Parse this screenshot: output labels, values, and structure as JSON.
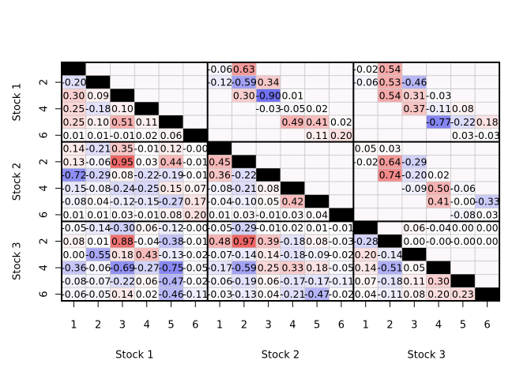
{
  "chart_data": {
    "type": "matrix",
    "row_groups": [
      "Stock 1",
      "Stock 2",
      "Stock 3"
    ],
    "col_groups": [
      "Stock 1",
      "Stock 2",
      "Stock 3"
    ],
    "xticks": [
      1,
      2,
      3,
      4,
      5,
      6
    ],
    "yticks": [
      2,
      4,
      6
    ],
    "clim": [
      -1,
      1
    ],
    "positive_color": "#ee6060",
    "negative_color": "#6060ee",
    "diagonal_color": "#000000",
    "values": [
      [
        null,
        null,
        null,
        null,
        null,
        null,
        -0.06,
        0.63,
        null,
        null,
        null,
        null,
        -0.02,
        0.54,
        null,
        null,
        null,
        null
      ],
      [
        -0.2,
        null,
        null,
        null,
        null,
        null,
        -0.12,
        -0.59,
        0.34,
        null,
        null,
        null,
        -0.06,
        0.53,
        -0.46,
        null,
        null,
        null
      ],
      [
        0.3,
        0.09,
        null,
        null,
        null,
        null,
        null,
        0.3,
        -0.9,
        0.01,
        null,
        null,
        null,
        0.54,
        0.31,
        -0.03,
        null,
        null
      ],
      [
        0.25,
        -0.18,
        0.1,
        null,
        null,
        null,
        null,
        null,
        -0.03,
        -0.05,
        0.02,
        null,
        null,
        null,
        0.37,
        -0.11,
        0.08,
        null
      ],
      [
        0.25,
        0.1,
        0.51,
        0.11,
        null,
        null,
        null,
        null,
        null,
        0.49,
        0.41,
        0.02,
        null,
        null,
        null,
        -0.77,
        -0.22,
        0.18
      ],
      [
        0.01,
        0.01,
        -0.01,
        0.02,
        0.06,
        null,
        null,
        null,
        null,
        null,
        0.11,
        0.2,
        null,
        null,
        null,
        null,
        0.03,
        -0.03
      ],
      [
        0.14,
        -0.21,
        0.35,
        -0.01,
        0.12,
        -0.0,
        null,
        null,
        null,
        null,
        null,
        null,
        0.05,
        0.03,
        null,
        null,
        null,
        null
      ],
      [
        0.13,
        -0.06,
        0.95,
        0.03,
        0.44,
        -0.01,
        0.45,
        null,
        null,
        null,
        null,
        null,
        -0.02,
        0.64,
        -0.29,
        null,
        null,
        null
      ],
      [
        -0.72,
        -0.29,
        0.08,
        -0.22,
        -0.19,
        -0.01,
        0.36,
        -0.22,
        null,
        null,
        null,
        null,
        null,
        0.74,
        -0.2,
        0.02,
        null,
        null
      ],
      [
        -0.15,
        -0.08,
        -0.24,
        -0.25,
        0.15,
        0.07,
        -0.08,
        -0.21,
        0.08,
        null,
        null,
        null,
        null,
        null,
        -0.09,
        0.5,
        -0.06,
        null
      ],
      [
        -0.08,
        0.04,
        -0.12,
        -0.15,
        -0.27,
        0.17,
        -0.04,
        -0.1,
        0.05,
        0.42,
        null,
        null,
        null,
        null,
        null,
        0.41,
        -0.0,
        -0.33
      ],
      [
        0.01,
        0.01,
        0.03,
        -0.01,
        0.08,
        0.2,
        0.01,
        0.03,
        -0.01,
        0.03,
        0.04,
        null,
        null,
        null,
        null,
        null,
        -0.08,
        0.03
      ],
      [
        -0.05,
        -0.14,
        -0.3,
        0.06,
        -0.12,
        -0.0,
        -0.05,
        -0.29,
        -0.01,
        0.02,
        0.01,
        -0.01,
        null,
        null,
        0.06,
        -0.04,
        0.0,
        0.0
      ],
      [
        0.08,
        0.01,
        0.88,
        -0.04,
        -0.38,
        -0.01,
        0.48,
        0.97,
        0.39,
        -0.18,
        0.08,
        -0.03,
        -0.28,
        null,
        0.0,
        -0.0,
        -0.0,
        0.0
      ],
      [
        0.0,
        -0.55,
        0.18,
        0.43,
        -0.13,
        -0.02,
        -0.07,
        -0.14,
        0.14,
        -0.18,
        -0.09,
        -0.02,
        0.2,
        -0.14,
        null,
        null,
        null,
        null
      ],
      [
        -0.36,
        -0.06,
        -0.69,
        -0.27,
        -0.75,
        -0.05,
        -0.17,
        -0.59,
        0.25,
        0.33,
        0.18,
        -0.05,
        0.14,
        -0.51,
        0.05,
        null,
        null,
        null
      ],
      [
        -0.08,
        -0.07,
        -0.22,
        0.06,
        -0.47,
        -0.02,
        -0.06,
        -0.19,
        0.06,
        -0.17,
        -0.17,
        -0.11,
        0.07,
        -0.18,
        0.11,
        0.3,
        null,
        null
      ],
      [
        -0.06,
        -0.05,
        0.14,
        0.02,
        -0.46,
        -0.11,
        -0.03,
        -0.13,
        0.04,
        -0.21,
        -0.47,
        -0.02,
        0.04,
        -0.11,
        0.08,
        0.2,
        0.23,
        null
      ]
    ],
    "value_labels": [
      [
        null,
        null,
        null,
        null,
        null,
        null,
        "-0.06",
        "0.63",
        null,
        null,
        null,
        null,
        "-0.02",
        "0.54",
        null,
        null,
        null,
        null
      ],
      [
        "-0.20",
        null,
        null,
        null,
        null,
        null,
        "-0.12",
        "-0.59",
        "0.34",
        null,
        null,
        null,
        "-0.06",
        "0.53",
        "-0.46",
        null,
        null,
        null
      ],
      [
        "0.30",
        "0.09",
        null,
        null,
        null,
        null,
        null,
        "0.30",
        "-0.90",
        "0.01",
        null,
        null,
        null,
        "0.54",
        "0.31",
        "-0.03",
        null,
        null
      ],
      [
        "0.25",
        "-0.18",
        "0.10",
        null,
        null,
        null,
        null,
        null,
        "-0.03",
        "-0.05",
        "0.02",
        null,
        null,
        null,
        "0.37",
        "-0.11",
        "0.08",
        null
      ],
      [
        "0.25",
        "0.10",
        "0.51",
        "0.11",
        null,
        null,
        null,
        null,
        null,
        "0.49",
        "0.41",
        "0.02",
        null,
        null,
        null,
        "-0.77",
        "-0.22",
        "0.18"
      ],
      [
        "0.01",
        "0.01",
        "-0.01",
        "0.02",
        "0.06",
        null,
        null,
        null,
        null,
        null,
        "0.11",
        "0.20",
        null,
        null,
        null,
        null,
        "0.03",
        "-0.03"
      ],
      [
        "0.14",
        "-0.21",
        "0.35",
        "-0.01",
        "0.12",
        "-0.00",
        null,
        null,
        null,
        null,
        null,
        null,
        "0.05",
        "0.03",
        null,
        null,
        null,
        null
      ],
      [
        "0.13",
        "-0.06",
        "0.95",
        "0.03",
        "0.44",
        "-0.01",
        "0.45",
        null,
        null,
        null,
        null,
        null,
        "-0.02",
        "0.64",
        "-0.29",
        null,
        null,
        null
      ],
      [
        "-0.72",
        "-0.29",
        "0.08",
        "-0.22",
        "-0.19",
        "-0.01",
        "0.36",
        "-0.22",
        null,
        null,
        null,
        null,
        null,
        "0.74",
        "-0.20",
        "0.02",
        null,
        null
      ],
      [
        "-0.15",
        "-0.08",
        "-0.24",
        "-0.25",
        "0.15",
        "0.07",
        "-0.08",
        "-0.21",
        "0.08",
        null,
        null,
        null,
        null,
        null,
        "-0.09",
        "0.50",
        "-0.06",
        null
      ],
      [
        "-0.08",
        "0.04",
        "-0.12",
        "-0.15",
        "-0.27",
        "0.17",
        "-0.04",
        "-0.10",
        "0.05",
        "0.42",
        null,
        null,
        null,
        null,
        null,
        "0.41",
        "-0.00",
        "-0.33"
      ],
      [
        "0.01",
        "0.01",
        "0.03",
        "-0.01",
        "0.08",
        "0.20",
        "0.01",
        "0.03",
        "-0.01",
        "0.03",
        "0.04",
        null,
        null,
        null,
        null,
        null,
        "-0.08",
        "0.03"
      ],
      [
        "-0.05",
        "-0.14",
        "-0.30",
        "0.06",
        "-0.12",
        "-0.00",
        "-0.05",
        "-0.29",
        "-0.01",
        "0.02",
        "0.01",
        "-0.01",
        null,
        null,
        "0.06",
        "-0.04",
        "0.00",
        "0.00"
      ],
      [
        "0.08",
        "0.01",
        "0.88",
        "-0.04",
        "-0.38",
        "-0.01",
        "0.48",
        "0.97",
        "0.39",
        "-0.18",
        "0.08",
        "-0.03",
        "-0.28",
        null,
        "0.00",
        "-0.00",
        "-0.00",
        "0.00"
      ],
      [
        "0.00",
        "-0.55",
        "0.18",
        "0.43",
        "-0.13",
        "-0.02",
        "-0.07",
        "-0.14",
        "0.14",
        "-0.18",
        "-0.09",
        "-0.02",
        "0.20",
        "-0.14",
        null,
        null,
        null,
        null
      ],
      [
        "-0.36",
        "-0.06",
        "-0.69",
        "-0.27",
        "-0.75",
        "-0.05",
        "-0.17",
        "-0.59",
        "0.25",
        "0.33",
        "0.18",
        "-0.05",
        "0.14",
        "-0.51",
        "0.05",
        null,
        null,
        null
      ],
      [
        "-0.08",
        "-0.07",
        "-0.22",
        "0.06",
        "-0.47",
        "-0.02",
        "-0.06",
        "-0.19",
        "0.06",
        "-0.17",
        "-0.17",
        "-0.11",
        "0.07",
        "-0.18",
        "0.11",
        "0.30",
        null,
        null
      ],
      [
        "-0.06",
        "-0.05",
        "0.14",
        "0.02",
        "-0.46",
        "-0.11",
        "-0.03",
        "-0.13",
        "0.04",
        "-0.21",
        "-0.47",
        "-0.02",
        "0.04",
        "-0.11",
        "0.08",
        "0.20",
        "0.23",
        null
      ]
    ]
  }
}
